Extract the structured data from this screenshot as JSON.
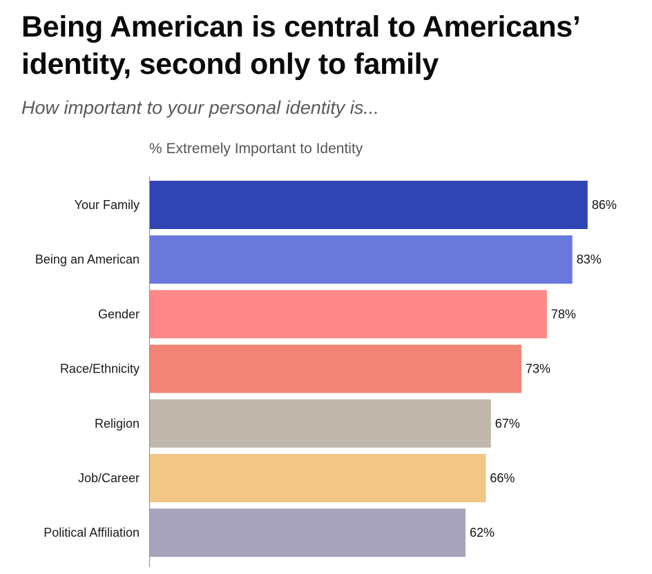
{
  "chart_data": {
    "type": "bar",
    "orientation": "horizontal",
    "title": "Being American is central to Americans’ identity, second only to family",
    "subtitle": "How important to your personal identity is...",
    "xlabel": "% Extremely Important to Identity",
    "ylabel": "",
    "grid": false,
    "categories": [
      "Your Family",
      "Being an American",
      "Gender",
      "Race/Ethnicity",
      "Religion",
      "Job/Career",
      "Political Affiliation"
    ],
    "values": [
      86,
      83,
      78,
      73,
      67,
      66,
      62
    ],
    "value_labels": [
      "86%",
      "83%",
      "78%",
      "73%",
      "67%",
      "66%",
      "62%"
    ],
    "colors": [
      "#3044b4",
      "#6a79dc",
      "#ff8888",
      "#f28476",
      "#c0b8ac",
      "#f2c685",
      "#a8a3bd"
    ],
    "xlim": [
      0,
      100
    ]
  }
}
